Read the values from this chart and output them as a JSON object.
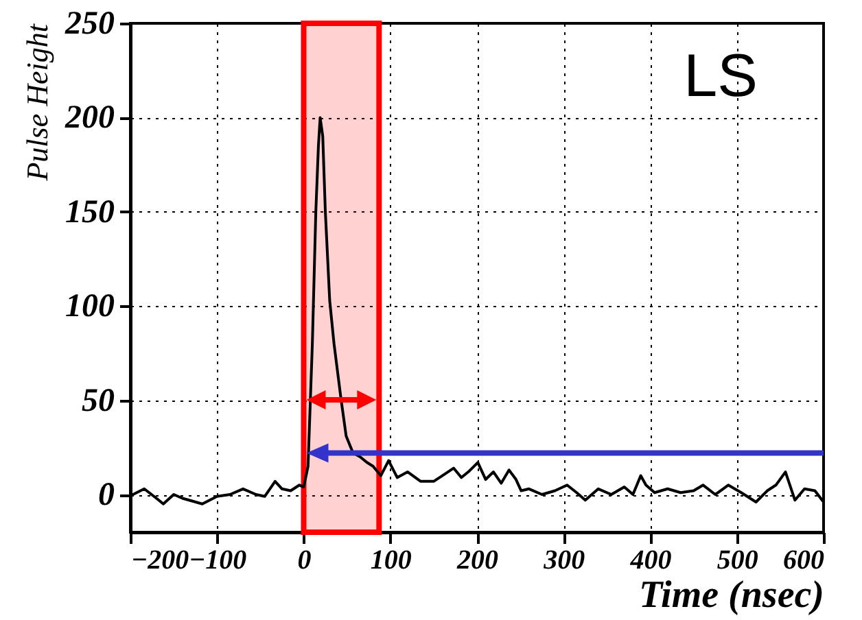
{
  "chart_data": {
    "type": "line",
    "xlabel": "Time (nsec)",
    "ylabel": "Pulse Height",
    "annotations": [
      "LS"
    ],
    "xlim": [
      -200,
      600
    ],
    "ylim": [
      -20,
      250
    ],
    "xticks": [
      -200,
      -100,
      0,
      100,
      200,
      300,
      400,
      500,
      600
    ],
    "yticks": [
      0,
      50,
      100,
      150,
      200,
      250
    ],
    "grid": true,
    "x": [
      -200,
      -197,
      -184,
      -170,
      -162,
      -150,
      -140,
      -117,
      -100,
      -85,
      -70,
      -55,
      -45,
      -33,
      -25,
      -15,
      -5,
      0,
      5,
      10,
      14,
      17,
      19,
      22,
      25,
      30,
      35,
      43,
      49,
      57,
      65,
      73,
      80,
      89,
      98,
      108,
      120,
      135,
      150,
      160,
      173,
      182,
      190,
      201,
      210,
      219,
      228,
      237,
      245,
      251,
      260,
      275,
      290,
      304,
      315,
      325,
      340,
      355,
      370,
      380,
      389,
      395,
      405,
      420,
      435,
      450,
      461,
      475,
      490,
      505,
      522,
      535,
      545,
      556,
      567,
      578,
      590,
      600
    ],
    "series": [
      {
        "color": "#000000",
        "values": [
          0,
          0,
          3,
          -2,
          -5,
          0,
          -2,
          -5,
          -1,
          0,
          3,
          0,
          -1,
          7,
          3,
          2,
          5,
          4,
          15,
          80,
          150,
          185,
          200,
          190,
          150,
          103,
          80,
          51,
          31,
          22,
          20,
          17,
          15,
          10,
          18,
          9,
          12,
          7,
          7,
          10,
          14,
          9,
          12,
          17,
          8,
          12,
          6,
          13,
          8,
          2,
          3,
          0,
          2,
          5,
          1,
          -3,
          3,
          0,
          4,
          0,
          10,
          5,
          1,
          3,
          1,
          2,
          5,
          0,
          5,
          1,
          -4,
          2,
          5,
          12,
          -3,
          3,
          2,
          -4
        ]
      }
    ],
    "bands": [
      {
        "axis": "x",
        "from": 0,
        "to": 87,
        "color": "#ff0000"
      }
    ],
    "ref_lines": [
      {
        "axis": "y",
        "value": 22,
        "color": "#3333cc"
      }
    ]
  }
}
